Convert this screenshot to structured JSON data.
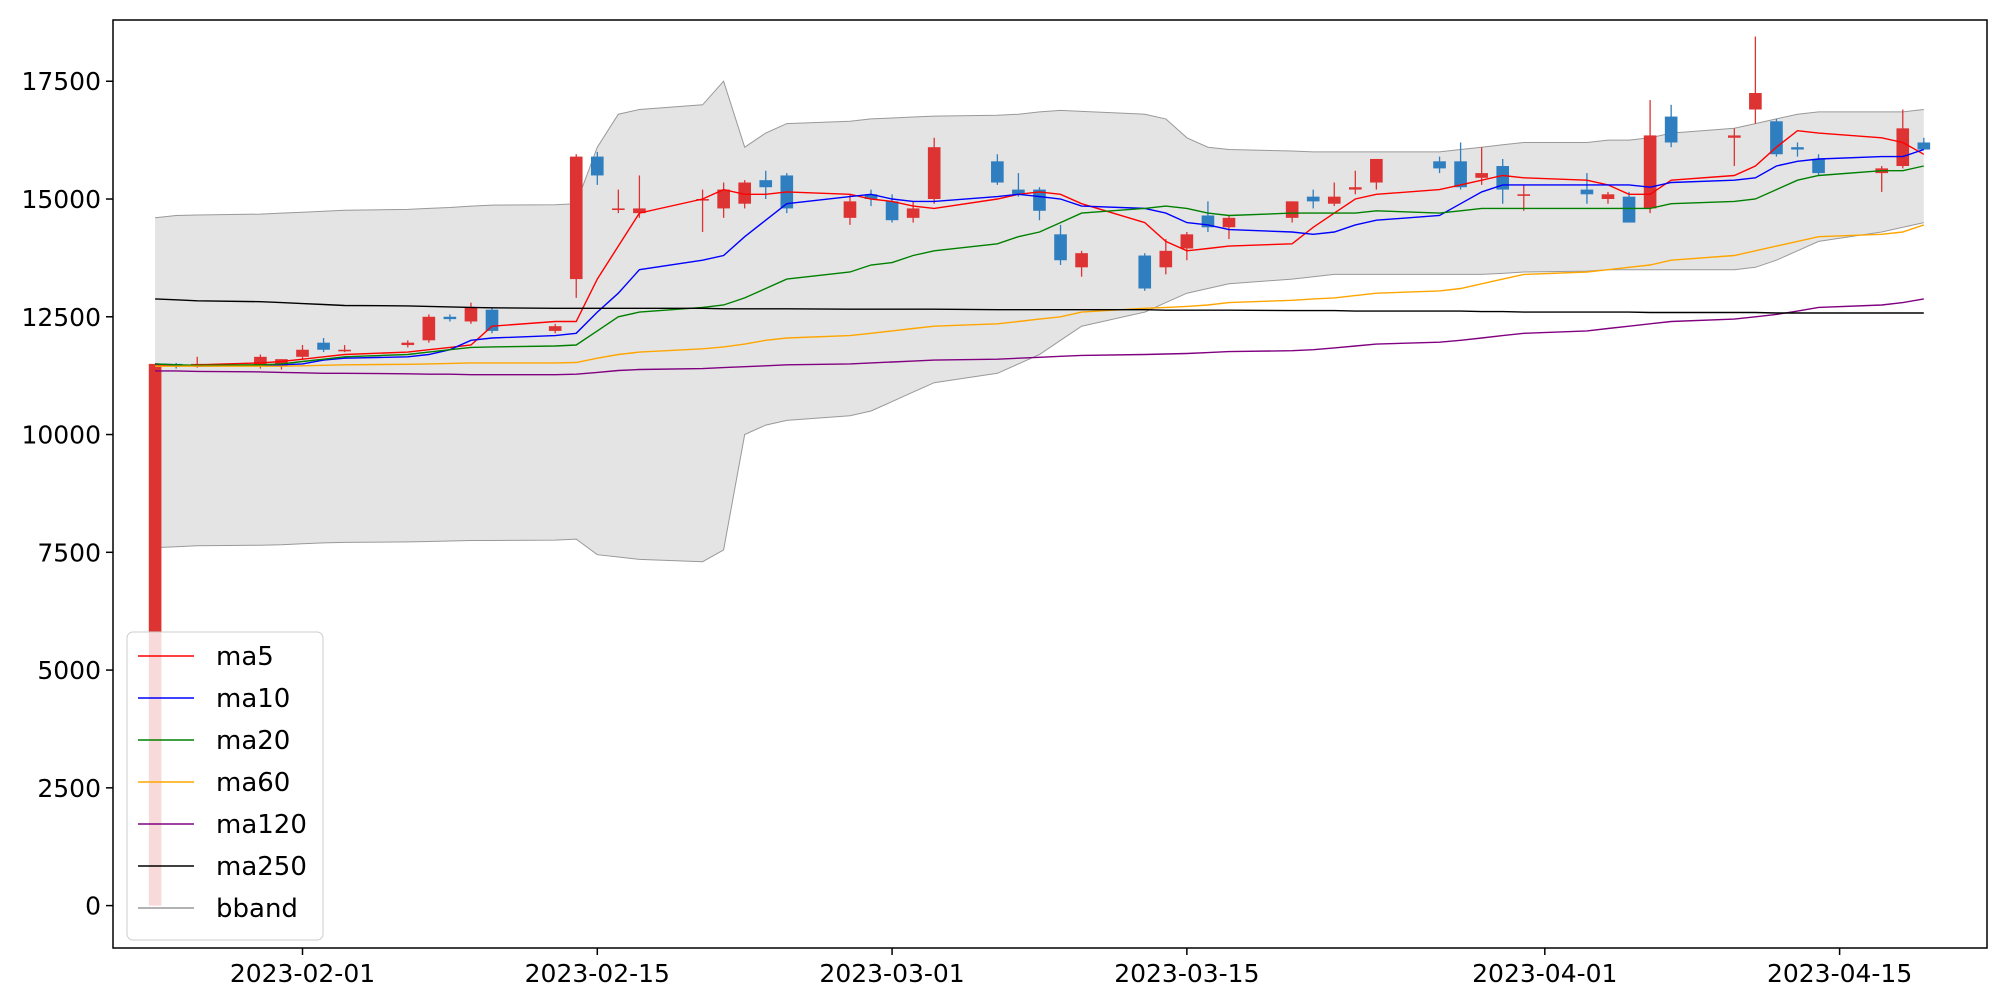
{
  "chart_data": {
    "type": "candlestick",
    "title": "",
    "xlabel": "",
    "ylabel": "",
    "ylim": [
      -900,
      18800
    ],
    "xlim": [
      "2023-01-23",
      "2023-04-22"
    ],
    "grid": false,
    "legend_placement": "lower-left",
    "x_ticks": [
      "2023-02-01",
      "2023-02-15",
      "2023-03-01",
      "2023-03-15",
      "2023-04-01",
      "2023-04-15"
    ],
    "y_ticks": [
      "0",
      "2500",
      "5000",
      "7500",
      "10000",
      "12500",
      "15000",
      "17500"
    ],
    "colors": {
      "up": "#dd3333",
      "down": "#2f7ebf",
      "band_fill": "#e4e4e4",
      "band_edge": "#999999"
    },
    "dates": [
      "2023-01-25",
      "2023-01-26",
      "2023-01-27",
      "2023-01-30",
      "2023-01-31",
      "2023-02-01",
      "2023-02-02",
      "2023-02-03",
      "2023-02-06",
      "2023-02-07",
      "2023-02-08",
      "2023-02-09",
      "2023-02-10",
      "2023-02-13",
      "2023-02-14",
      "2023-02-15",
      "2023-02-16",
      "2023-02-17",
      "2023-02-20",
      "2023-02-21",
      "2023-02-22",
      "2023-02-23",
      "2023-02-24",
      "2023-02-27",
      "2023-02-28",
      "2023-03-01",
      "2023-03-02",
      "2023-03-03",
      "2023-03-06",
      "2023-03-07",
      "2023-03-08",
      "2023-03-09",
      "2023-03-10",
      "2023-03-13",
      "2023-03-14",
      "2023-03-15",
      "2023-03-16",
      "2023-03-17",
      "2023-03-20",
      "2023-03-21",
      "2023-03-22",
      "2023-03-23",
      "2023-03-24",
      "2023-03-27",
      "2023-03-28",
      "2023-03-29",
      "2023-03-30",
      "2023-03-31",
      "2023-04-03",
      "2023-04-04",
      "2023-04-05",
      "2023-04-06",
      "2023-04-07",
      "2023-04-10",
      "2023-04-11",
      "2023-04-12",
      "2023-04-13",
      "2023-04-14",
      "2023-04-17",
      "2023-04-18",
      "2023-04-19"
    ],
    "ohlc": [
      [
        0,
        11500,
        0,
        11500
      ],
      [
        11500,
        11520,
        11400,
        11450
      ],
      [
        11450,
        11650,
        11420,
        11500
      ],
      [
        11450,
        11700,
        11400,
        11650
      ],
      [
        11450,
        11600,
        11380,
        11600
      ],
      [
        11650,
        11900,
        11600,
        11800
      ],
      [
        11950,
        12050,
        11750,
        11800
      ],
      [
        11800,
        11900,
        11750,
        11800
      ],
      [
        11900,
        12000,
        11850,
        11950
      ],
      [
        12000,
        12550,
        11950,
        12500
      ],
      [
        12500,
        12550,
        12400,
        12450
      ],
      [
        12400,
        12800,
        12350,
        12700
      ],
      [
        12650,
        12700,
        12150,
        12200
      ],
      [
        12200,
        12350,
        12150,
        12300
      ],
      [
        13300,
        15950,
        12900,
        15900
      ],
      [
        15900,
        16000,
        15300,
        15500
      ],
      [
        14800,
        15200,
        14700,
        14800
      ],
      [
        14700,
        15500,
        14600,
        14800
      ],
      [
        15000,
        15200,
        14300,
        15000
      ],
      [
        14800,
        15350,
        14600,
        15200
      ],
      [
        14900,
        15400,
        14800,
        15350
      ],
      [
        15400,
        15600,
        15000,
        15250
      ],
      [
        15500,
        15550,
        14700,
        14800
      ],
      [
        14600,
        15100,
        14450,
        14950
      ],
      [
        15100,
        15200,
        14850,
        15000
      ],
      [
        14950,
        15100,
        14500,
        14550
      ],
      [
        14600,
        14950,
        14500,
        14800
      ],
      [
        15000,
        16300,
        14900,
        16100
      ],
      [
        15800,
        15950,
        15300,
        15350
      ],
      [
        15200,
        15550,
        15050,
        15100
      ],
      [
        15200,
        15250,
        14550,
        14750
      ],
      [
        14250,
        14450,
        13600,
        13700
      ],
      [
        13550,
        13900,
        13350,
        13850
      ],
      [
        13800,
        13850,
        13050,
        13100
      ],
      [
        13550,
        14150,
        13400,
        13900
      ],
      [
        13950,
        14300,
        13700,
        14250
      ],
      [
        14650,
        14950,
        14300,
        14400
      ],
      [
        14400,
        14650,
        14150,
        14600
      ],
      [
        14600,
        14950,
        14500,
        14950
      ],
      [
        15050,
        15200,
        14800,
        14950
      ],
      [
        14900,
        15350,
        14850,
        15050
      ],
      [
        15200,
        15600,
        15100,
        15250
      ],
      [
        15350,
        15850,
        15200,
        15850
      ],
      [
        15800,
        15900,
        15550,
        15650
      ],
      [
        15800,
        16200,
        15200,
        15250
      ],
      [
        15450,
        16100,
        15300,
        15550
      ],
      [
        15700,
        15850,
        14900,
        15200
      ],
      [
        15100,
        15300,
        14750,
        15100
      ],
      [
        15200,
        15550,
        14900,
        15100
      ],
      [
        15000,
        15150,
        14900,
        15100
      ],
      [
        15050,
        15150,
        14500,
        14500
      ],
      [
        14800,
        17100,
        14700,
        16350
      ],
      [
        16750,
        17000,
        16100,
        16200
      ],
      [
        16300,
        16500,
        15700,
        16350
      ],
      [
        16900,
        18450,
        16600,
        17250
      ],
      [
        16650,
        16700,
        15900,
        15950
      ],
      [
        16100,
        16200,
        15900,
        16050
      ],
      [
        15850,
        15950,
        15500,
        15550
      ],
      [
        15550,
        15700,
        15150,
        15650
      ],
      [
        15700,
        16900,
        15650,
        16500
      ],
      [
        16200,
        16300,
        16050,
        16050
      ]
    ],
    "series": [
      {
        "name": "ma5",
        "color": "#ff0000",
        "values": [
          11500,
          11450,
          11480,
          11520,
          11550,
          11600,
          11650,
          11700,
          11750,
          11800,
          11850,
          11900,
          12300,
          12400,
          12400,
          13300,
          14000,
          14700,
          15000,
          15200,
          15100,
          15100,
          15150,
          15100,
          15000,
          14950,
          14850,
          14800,
          15000,
          15100,
          15150,
          15100,
          14900,
          14500,
          14100,
          13900,
          13950,
          14000,
          14050,
          14400,
          14700,
          15000,
          15100,
          15200,
          15300,
          15400,
          15500,
          15450,
          15400,
          15300,
          15100,
          15100,
          15400,
          15500,
          15700,
          16100,
          16450,
          16400,
          16300,
          16200,
          15950
        ]
      },
      {
        "name": "ma10",
        "color": "#0000ff",
        "values": [
          11500,
          11480,
          11450,
          11470,
          11480,
          11500,
          11580,
          11620,
          11650,
          11700,
          11800,
          12000,
          12050,
          12100,
          12150,
          12600,
          13000,
          13500,
          13700,
          13800,
          14200,
          14550,
          14900,
          15050,
          15100,
          15000,
          14950,
          14950,
          15050,
          15100,
          15050,
          15000,
          14850,
          14800,
          14700,
          14500,
          14450,
          14350,
          14300,
          14250,
          14300,
          14450,
          14550,
          14650,
          14900,
          15150,
          15300,
          15300,
          15300,
          15300,
          15300,
          15250,
          15350,
          15400,
          15450,
          15700,
          15800,
          15850,
          15900,
          15900,
          16050
        ]
      },
      {
        "name": "ma20",
        "color": "#008000",
        "values": [
          11500,
          11480,
          11470,
          11480,
          11500,
          11550,
          11600,
          11650,
          11700,
          11750,
          11800,
          11850,
          11860,
          11880,
          11900,
          12200,
          12500,
          12600,
          12700,
          12750,
          12900,
          13100,
          13300,
          13450,
          13600,
          13650,
          13800,
          13900,
          14050,
          14200,
          14300,
          14500,
          14700,
          14800,
          14850,
          14800,
          14700,
          14650,
          14700,
          14700,
          14700,
          14700,
          14750,
          14700,
          14750,
          14800,
          14800,
          14800,
          14800,
          14800,
          14800,
          14800,
          14900,
          14950,
          15000,
          15200,
          15400,
          15500,
          15600,
          15600,
          15700
        ]
      },
      {
        "name": "ma60",
        "color": "#ffa500",
        "values": [
          11450,
          11450,
          11450,
          11450,
          11450,
          11460,
          11470,
          11480,
          11490,
          11500,
          11510,
          11520,
          11520,
          11520,
          11530,
          11620,
          11700,
          11750,
          11820,
          11860,
          11920,
          12000,
          12050,
          12100,
          12150,
          12200,
          12250,
          12300,
          12350,
          12400,
          12450,
          12500,
          12600,
          12680,
          12700,
          12720,
          12750,
          12800,
          12850,
          12880,
          12900,
          12950,
          13000,
          13050,
          13100,
          13200,
          13300,
          13400,
          13450,
          13500,
          13550,
          13600,
          13700,
          13800,
          13900,
          14000,
          14100,
          14200,
          14250,
          14300,
          14450
        ]
      },
      {
        "name": "ma120",
        "color": "#800080",
        "values": [
          11350,
          11350,
          11340,
          11330,
          11320,
          11310,
          11300,
          11300,
          11290,
          11280,
          11280,
          11270,
          11270,
          11270,
          11280,
          11320,
          11360,
          11380,
          11400,
          11420,
          11440,
          11460,
          11480,
          11500,
          11520,
          11540,
          11560,
          11580,
          11600,
          11620,
          11640,
          11660,
          11680,
          11700,
          11710,
          11720,
          11740,
          11760,
          11780,
          11800,
          11840,
          11880,
          11920,
          11960,
          12000,
          12050,
          12100,
          12150,
          12200,
          12250,
          12300,
          12350,
          12400,
          12450,
          12500,
          12550,
          12620,
          12700,
          12750,
          12800,
          12880
        ]
      },
      {
        "name": "ma250",
        "color": "#000000",
        "values": [
          12880,
          12860,
          12840,
          12820,
          12800,
          12780,
          12760,
          12740,
          12730,
          12720,
          12710,
          12700,
          12690,
          12680,
          12680,
          12680,
          12680,
          12680,
          12680,
          12670,
          12670,
          12670,
          12670,
          12660,
          12660,
          12660,
          12660,
          12660,
          12650,
          12650,
          12650,
          12650,
          12650,
          12650,
          12640,
          12640,
          12640,
          12640,
          12630,
          12630,
          12630,
          12620,
          12620,
          12620,
          12620,
          12610,
          12610,
          12600,
          12600,
          12600,
          12600,
          12590,
          12590,
          12590,
          12590,
          12580,
          12580,
          12580,
          12580,
          12580,
          12580
        ]
      }
    ],
    "bband": {
      "name": "bband",
      "upper": [
        14600,
        14650,
        14660,
        14680,
        14700,
        14720,
        14740,
        14760,
        14780,
        14800,
        14820,
        14850,
        14870,
        14880,
        14900,
        16100,
        16800,
        16900,
        17000,
        17500,
        16100,
        16400,
        16600,
        16650,
        16700,
        16720,
        16740,
        16760,
        16780,
        16800,
        16850,
        16880,
        16860,
        16800,
        16700,
        16300,
        16100,
        16050,
        16020,
        16000,
        16000,
        16000,
        16000,
        16000,
        16050,
        16100,
        16150,
        16200,
        16200,
        16250,
        16250,
        16300,
        16400,
        16500,
        16600,
        16700,
        16800,
        16850,
        16850,
        16850,
        16900
      ],
      "lower": [
        7600,
        7620,
        7640,
        7650,
        7660,
        7680,
        7700,
        7710,
        7720,
        7730,
        7740,
        7750,
        7750,
        7760,
        7780,
        7450,
        7400,
        7350,
        7300,
        7550,
        10000,
        10200,
        10300,
        10400,
        10500,
        10700,
        10900,
        11100,
        11300,
        11500,
        11700,
        12000,
        12300,
        12600,
        12800,
        13000,
        13100,
        13200,
        13300,
        13350,
        13400,
        13400,
        13400,
        13400,
        13400,
        13400,
        13420,
        13450,
        13470,
        13500,
        13500,
        13500,
        13500,
        13500,
        13550,
        13700,
        13900,
        14100,
        14300,
        14400,
        14500
      ]
    }
  }
}
